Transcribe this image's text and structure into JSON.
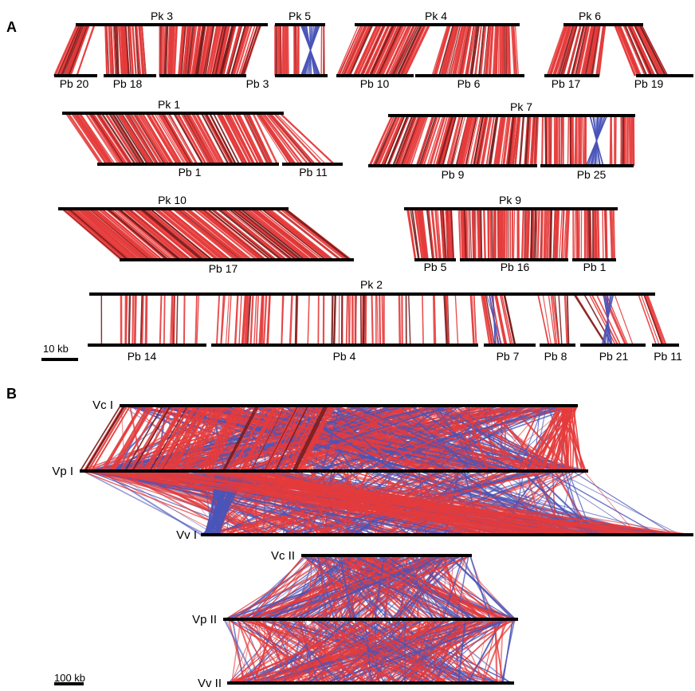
{
  "panels": {
    "A": {
      "label": "A",
      "scale_label": "10 kb",
      "blocks": [
        {
          "top": {
            "name": "Pk 3"
          },
          "bottom": [
            {
              "name": "Pb 20"
            },
            {
              "name": "Pb 18"
            },
            {
              "name": "Pb 3"
            }
          ]
        },
        {
          "top": {
            "name": "Pk 5"
          },
          "bottom": []
        },
        {
          "top": {
            "name": "Pk 4"
          },
          "bottom": [
            {
              "name": "Pb 10"
            },
            {
              "name": "Pb 6"
            }
          ]
        },
        {
          "top": {
            "name": "Pk 6"
          },
          "bottom": [
            {
              "name": "Pb 17"
            },
            {
              "name": "Pb 19"
            }
          ]
        },
        {
          "top": {
            "name": "Pk 1"
          },
          "bottom": [
            {
              "name": "Pb 1"
            },
            {
              "name": "Pb 11"
            }
          ]
        },
        {
          "top": {
            "name": "Pk 7"
          },
          "bottom": [
            {
              "name": "Pb 9"
            },
            {
              "name": "Pb 25"
            }
          ]
        },
        {
          "top": {
            "name": "Pk 10"
          },
          "bottom": [
            {
              "name": "Pb 17"
            }
          ]
        },
        {
          "top": {
            "name": "Pk 9"
          },
          "bottom": [
            {
              "name": "Pb 5"
            },
            {
              "name": "Pb 16"
            },
            {
              "name": "Pb 1"
            }
          ]
        },
        {
          "top": {
            "name": "Pk 2"
          },
          "bottom": [
            {
              "name": "Pb 14"
            },
            {
              "name": "Pb 4"
            },
            {
              "name": "Pb 7"
            },
            {
              "name": "Pb 8"
            },
            {
              "name": "Pb 21"
            },
            {
              "name": "Pb 11"
            }
          ]
        }
      ]
    },
    "B": {
      "label": "B",
      "scale_label": "100 kb",
      "chromosomes": [
        "Vc I",
        "Vp I",
        "Vv I",
        "Vc II",
        "Vp II",
        "Vv II"
      ]
    }
  },
  "colors": {
    "forward_link": "#e63b3b",
    "inverted_link": "#4a55b8",
    "dark_link": "#7a1c1c",
    "bar": "#000000"
  }
}
